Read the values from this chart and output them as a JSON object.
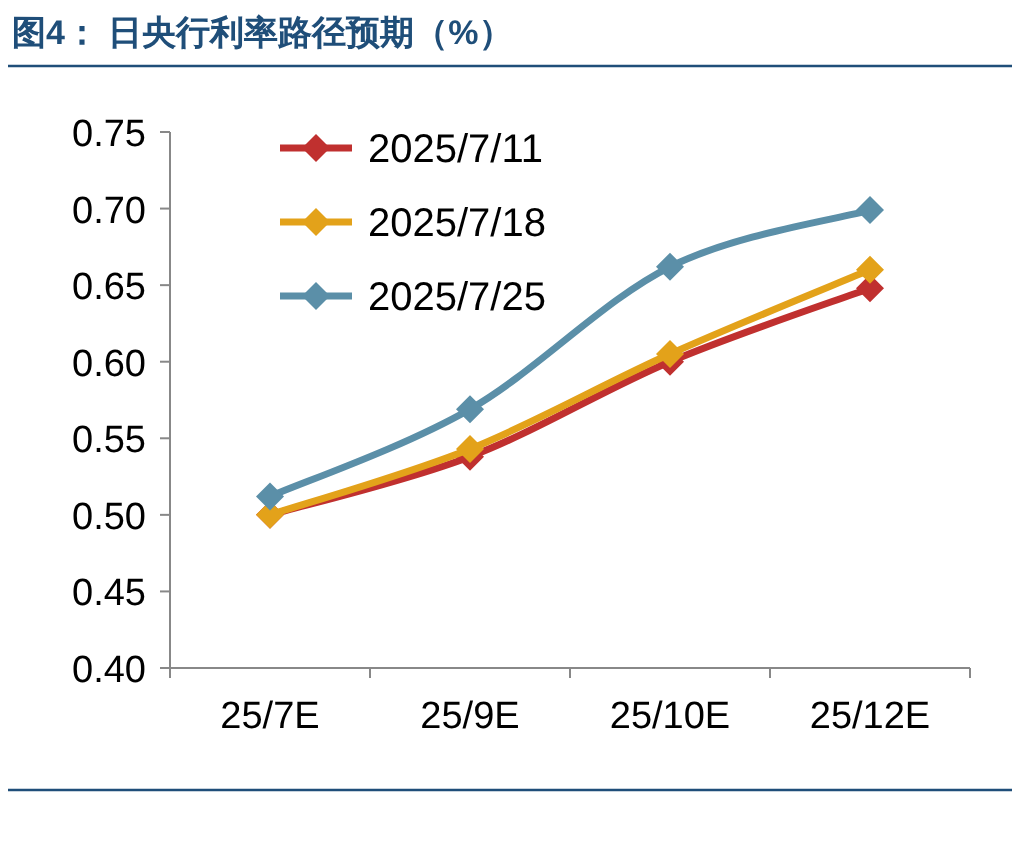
{
  "chart_data": {
    "type": "line",
    "title": "图4： 日央行利率路径预期（%）",
    "categories": [
      "25/7E",
      "25/9E",
      "25/10E",
      "25/12E"
    ],
    "series": [
      {
        "name": "2025/7/11",
        "color": "#c0302f",
        "values": [
          0.5,
          0.538,
          0.6,
          0.648
        ]
      },
      {
        "name": "2025/7/18",
        "color": "#e3a21a",
        "values": [
          0.5,
          0.543,
          0.605,
          0.66
        ]
      },
      {
        "name": "2025/7/25",
        "color": "#5b8fa8",
        "values": [
          0.512,
          0.569,
          0.662,
          0.699
        ]
      }
    ],
    "ylim": [
      0.4,
      0.75
    ],
    "yticks": [
      {
        "value": 0.4,
        "label": "0.40"
      },
      {
        "value": 0.45,
        "label": "0.45"
      },
      {
        "value": 0.5,
        "label": "0.50"
      },
      {
        "value": 0.55,
        "label": "0.55"
      },
      {
        "value": 0.6,
        "label": "0.60"
      },
      {
        "value": 0.65,
        "label": "0.65"
      },
      {
        "value": 0.7,
        "label": "0.70"
      },
      {
        "value": 0.75,
        "label": "0.75"
      }
    ],
    "legend": "top left",
    "marker": "diamond",
    "line_style": "solid"
  }
}
